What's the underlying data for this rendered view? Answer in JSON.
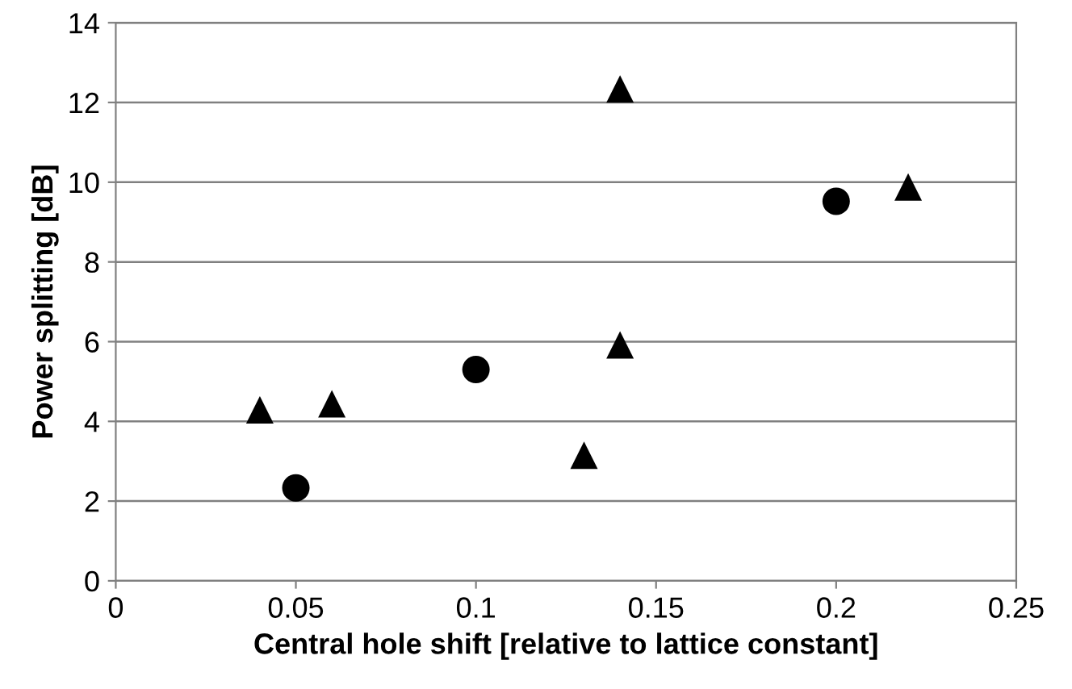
{
  "chart_data": {
    "type": "scatter",
    "xlabel": "Central hole shift [relative to lattice constant]",
    "ylabel": "Power splitting [dB]",
    "xlim": [
      0,
      0.25
    ],
    "xticks": [
      0,
      0.05,
      0.1,
      0.15,
      0.2,
      0.25
    ],
    "ylim": [
      0,
      14
    ],
    "yticks": [
      0,
      2,
      4,
      6,
      8,
      10,
      12,
      14
    ],
    "grid": "y",
    "series": [
      {
        "color": "#000000",
        "marker": "circle",
        "x": [
          0.05,
          0.1,
          0.2
        ],
        "values": [
          2.33,
          5.3,
          9.52
        ]
      },
      {
        "color": "#000000",
        "marker": "triangle",
        "x": [
          0.04,
          0.06,
          0.13,
          0.14,
          0.14,
          0.22
        ],
        "values": [
          4.29,
          4.44,
          3.15,
          5.92,
          12.34,
          9.88
        ]
      }
    ]
  }
}
